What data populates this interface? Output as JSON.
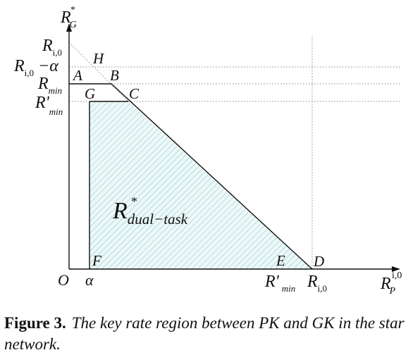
{
  "axes": {
    "y_label": "R",
    "y_label_sup": "*",
    "y_label_sub": "G",
    "x_label": "R",
    "x_label_sup": "i,0",
    "x_label_sub": "P"
  },
  "y_ticks": {
    "r_i0": {
      "main": "R",
      "sub": "i,0"
    },
    "r_i0_minus_alpha": {
      "main": "R",
      "sub": "i,0",
      "rest": "−α"
    },
    "r_min": {
      "main": "R",
      "sub": "min"
    },
    "r_prime_min": {
      "main": "R'",
      "sub": "min"
    }
  },
  "x_ticks": {
    "origin": "O",
    "alpha": "α",
    "r_prime_min": {
      "main": "R'",
      "sub": "min"
    },
    "r_i0": {
      "main": "R",
      "sub": "i,0"
    }
  },
  "points": {
    "A": "A",
    "B": "B",
    "C": "C",
    "D": "D",
    "E": "E",
    "F": "F",
    "G": "G",
    "H": "H"
  },
  "region_label": {
    "main": "R",
    "sup": "*",
    "sub": "dual−task"
  },
  "caption": {
    "label": "Figure 3.",
    "text": "The key rate region between PK and GK in the star network."
  },
  "colors": {
    "hatch": "#7fc4c4",
    "region_fill": "#eef8f8",
    "axis": "#111111",
    "dotted": "#888888"
  }
}
